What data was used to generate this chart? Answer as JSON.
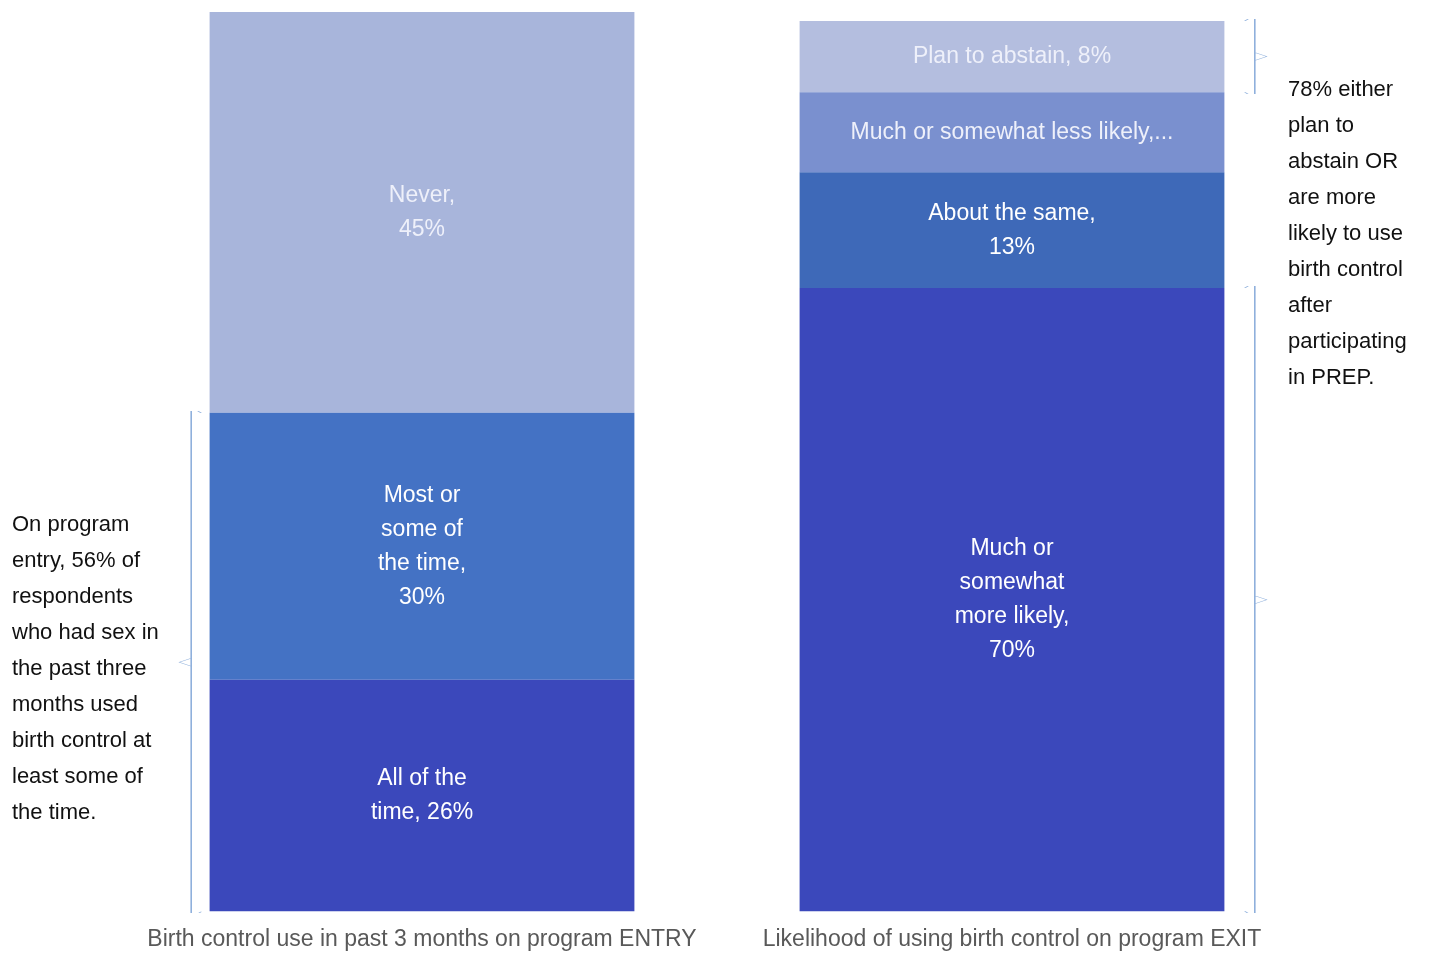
{
  "chart_data": {
    "type": "bar",
    "stacked": true,
    "legend": false,
    "grid": false,
    "categories": [
      "Birth control use in past 3 months on program ENTRY",
      "Likelihood of using birth control on program EXIT"
    ],
    "series": [
      {
        "colors": [
          "#3b48bb",
          "#3b48bb"
        ],
        "values": [
          26,
          70
        ],
        "value_labels": [
          "All of the time, 26%",
          "Much or somewhat more likely, 70%"
        ]
      },
      {
        "colors": [
          "#4472c4",
          "#3e69b8"
        ],
        "values": [
          30,
          13
        ],
        "value_labels": [
          "Most or some of the time, 30%",
          "About the same, 13%"
        ]
      },
      {
        "colors": [
          "#a8b5db",
          "#7a90cf"
        ],
        "values": [
          45,
          9
        ],
        "value_labels": [
          "Never, 45%",
          "Much or somewhat less likely,..."
        ]
      },
      {
        "colors": [
          "#b4bedf",
          "#b4bedf"
        ],
        "values": [
          null,
          8
        ],
        "value_labels": [
          null,
          "Plan to abstain, 8%"
        ]
      }
    ],
    "annotations": [
      "On program entry, 56% of respondents who had sex in the past three months used birth control at least some of the time.",
      "78% either plan to abstain OR are more likely to use birth control after participating in PREP."
    ]
  }
}
